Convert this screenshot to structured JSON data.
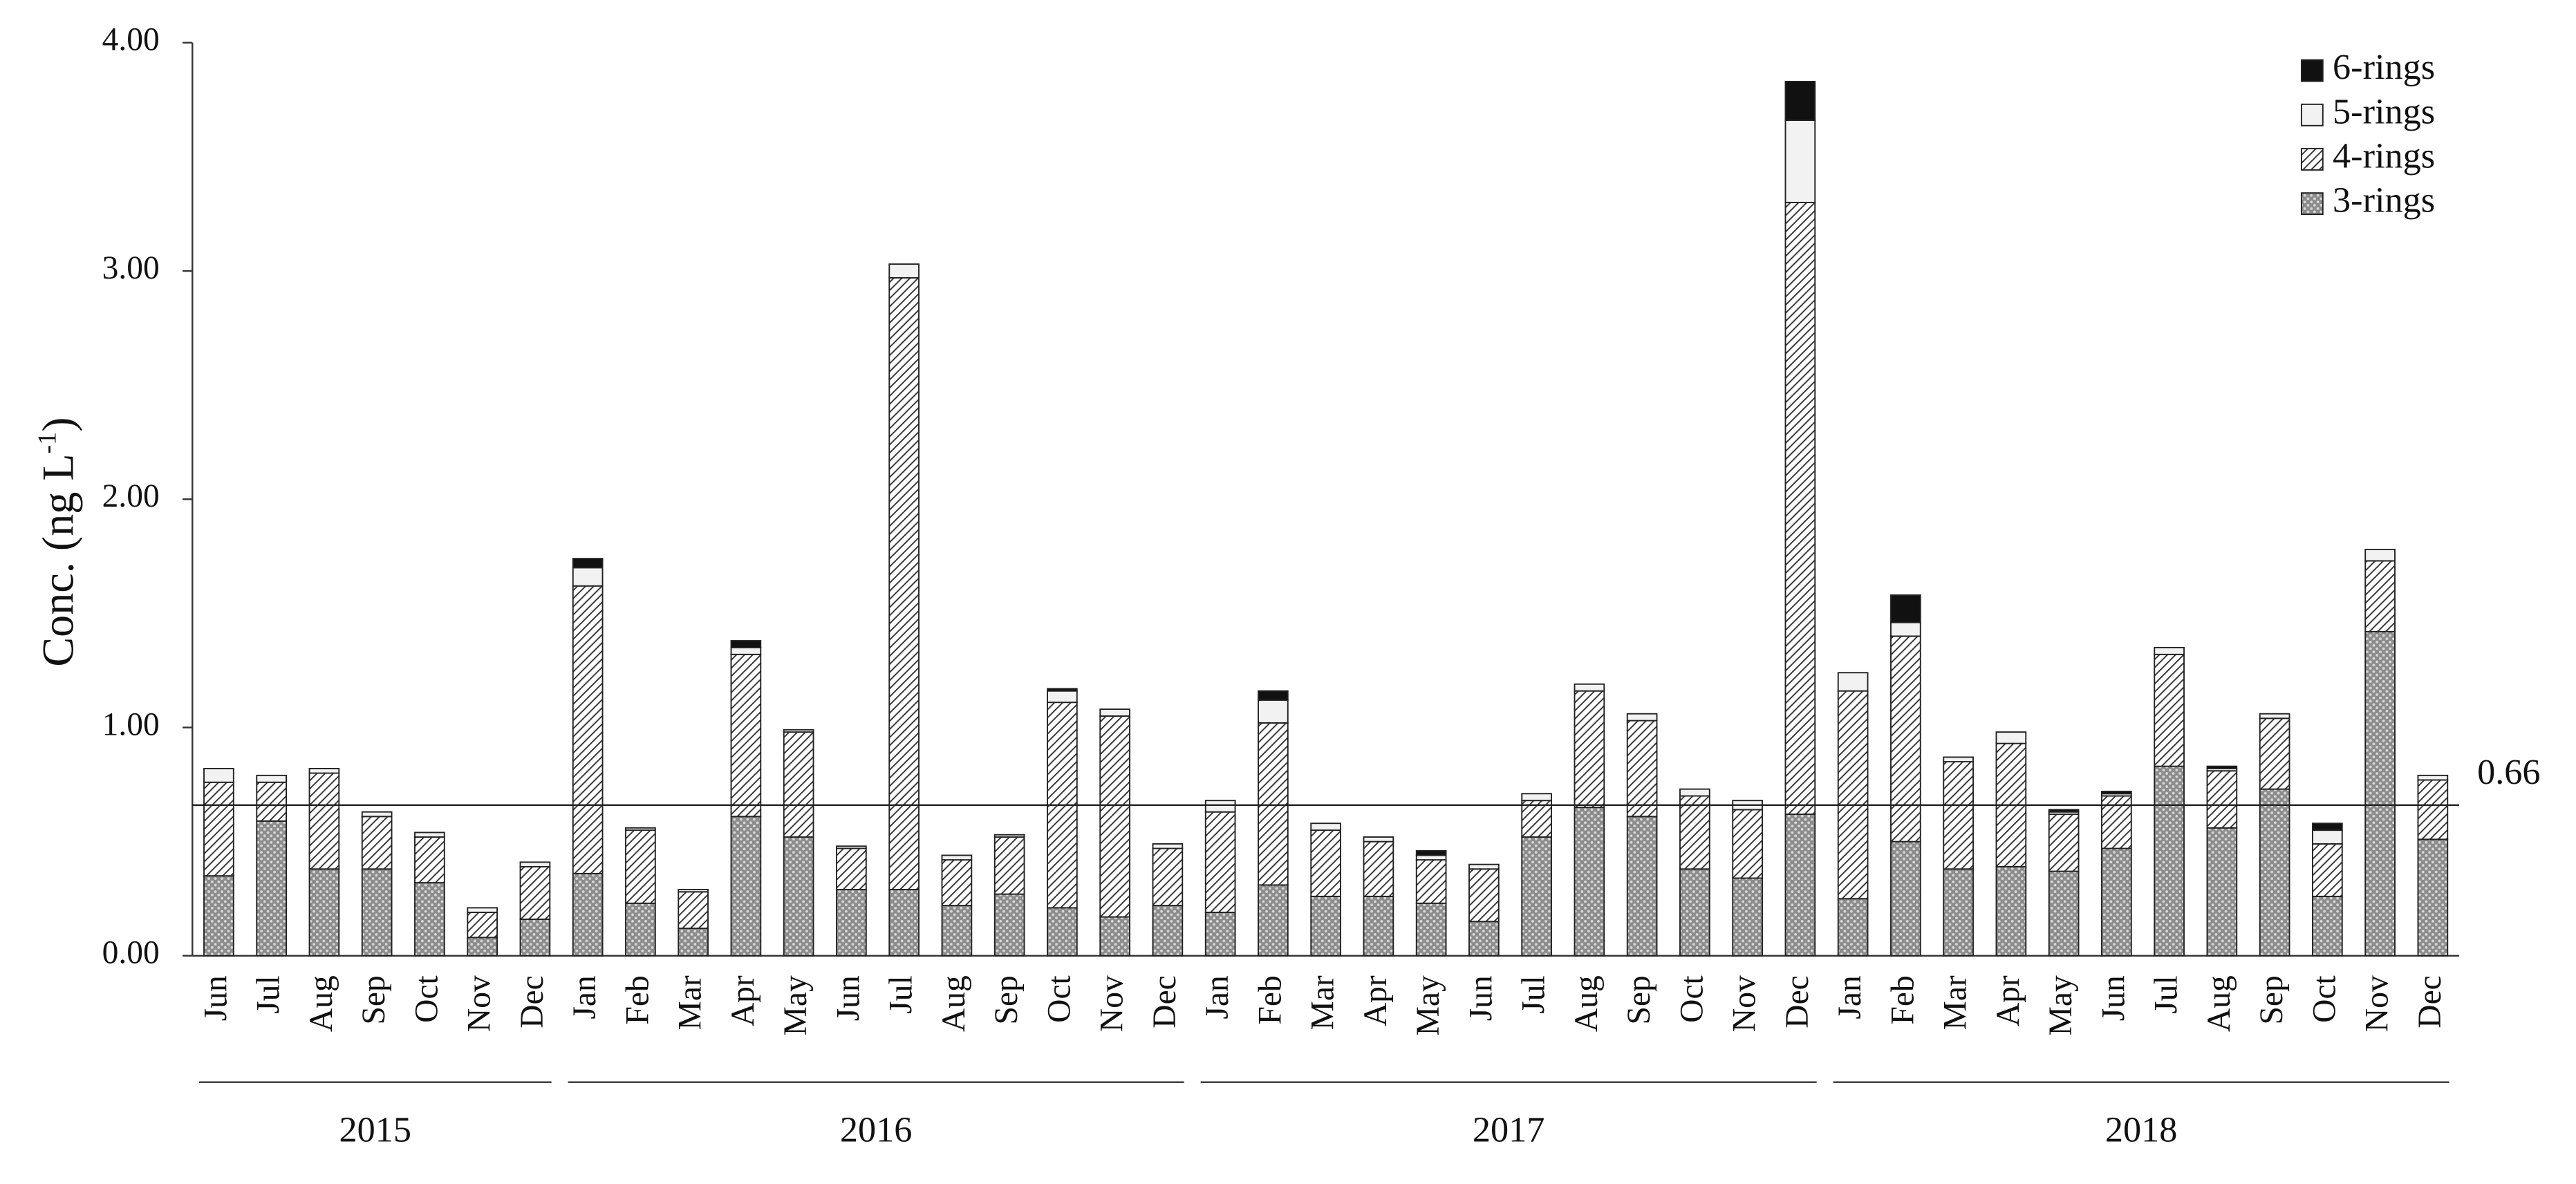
{
  "chart_data": {
    "type": "stacked_bar",
    "y_label": {
      "text": "Conc.   (ng L",
      "sup": "-1",
      "end": ")"
    },
    "categories": [
      "Jun",
      "Jul",
      "Aug",
      "Sep",
      "Oct",
      "Nov",
      "Dec",
      "Jan",
      "Feb",
      "Mar",
      "Apr",
      "May",
      "Jun",
      "Jul",
      "Aug",
      "Sep",
      "Oct",
      "Nov",
      "Dec",
      "Jan",
      "Feb",
      "Mar",
      "Apr",
      "May",
      "Jun",
      "Jul",
      "Aug",
      "Sep",
      "Oct",
      "Nov",
      "Dec",
      "Jan",
      "Feb",
      "Mar",
      "Apr",
      "May",
      "Jun",
      "Jul",
      "Aug",
      "Sep",
      "Oct",
      "Nov",
      "Dec"
    ],
    "groups": [
      {
        "label": "2015",
        "size": 7
      },
      {
        "label": "2016",
        "size": 12
      },
      {
        "label": "2017",
        "size": 12
      },
      {
        "label": "2018",
        "size": 12
      }
    ],
    "series": [
      {
        "name": "3-rings",
        "color": "#9a9a9a",
        "pattern": "dots",
        "values": [
          0.35,
          0.59,
          0.38,
          0.38,
          0.32,
          0.08,
          0.16,
          0.36,
          0.23,
          0.12,
          0.61,
          0.52,
          0.29,
          0.29,
          0.22,
          0.27,
          0.21,
          0.17,
          0.22,
          0.19,
          0.31,
          0.26,
          0.26,
          0.23,
          0.15,
          0.52,
          0.65,
          0.61,
          0.38,
          0.34,
          0.62,
          0.25,
          0.5,
          0.38,
          0.39,
          0.37,
          0.47,
          0.83,
          0.56,
          0.73,
          0.26,
          1.42,
          0.51
        ]
      },
      {
        "name": "4-rings",
        "color": "#ffffff",
        "pattern": "hatch",
        "values": [
          0.41,
          0.17,
          0.42,
          0.23,
          0.2,
          0.11,
          0.23,
          1.26,
          0.32,
          0.16,
          0.71,
          0.46,
          0.18,
          2.68,
          0.2,
          0.25,
          0.9,
          0.88,
          0.25,
          0.44,
          0.71,
          0.29,
          0.24,
          0.19,
          0.23,
          0.16,
          0.51,
          0.42,
          0.32,
          0.3,
          2.68,
          0.91,
          0.9,
          0.47,
          0.54,
          0.25,
          0.23,
          0.49,
          0.25,
          0.31,
          0.23,
          0.31,
          0.26
        ]
      },
      {
        "name": "5-rings",
        "color": "#f2f2f2",
        "pattern": "none",
        "values": [
          0.06,
          0.03,
          0.02,
          0.02,
          0.02,
          0.02,
          0.02,
          0.08,
          0.01,
          0.01,
          0.03,
          0.01,
          0.01,
          0.06,
          0.02,
          0.01,
          0.05,
          0.03,
          0.02,
          0.05,
          0.1,
          0.03,
          0.02,
          0.02,
          0.02,
          0.03,
          0.03,
          0.03,
          0.03,
          0.04,
          0.36,
          0.08,
          0.06,
          0.02,
          0.05,
          0.01,
          0.01,
          0.03,
          0.01,
          0.02,
          0.06,
          0.05,
          0.02
        ]
      },
      {
        "name": "6-rings",
        "color": "#111111",
        "pattern": "none",
        "values": [
          0,
          0,
          0,
          0,
          0,
          0,
          0,
          0.04,
          0,
          0,
          0.03,
          0,
          0,
          0,
          0,
          0,
          0.01,
          0,
          0,
          0,
          0.04,
          0,
          0,
          0.02,
          0,
          0,
          0,
          0,
          0,
          0,
          0.17,
          0,
          0.12,
          0,
          0,
          0.01,
          0.01,
          0,
          0.01,
          0,
          0.03,
          0,
          0
        ]
      }
    ],
    "reference_line": {
      "value": 0.66
    },
    "ylim": [
      0,
      4
    ],
    "yticks": [
      {
        "value": 0,
        "label": "0.00"
      },
      {
        "value": 1,
        "label": "1.00"
      },
      {
        "value": 2,
        "label": "2.00"
      },
      {
        "value": 3,
        "label": "3.00"
      },
      {
        "value": 4,
        "label": "4.00"
      }
    ],
    "legend": "upper right"
  }
}
